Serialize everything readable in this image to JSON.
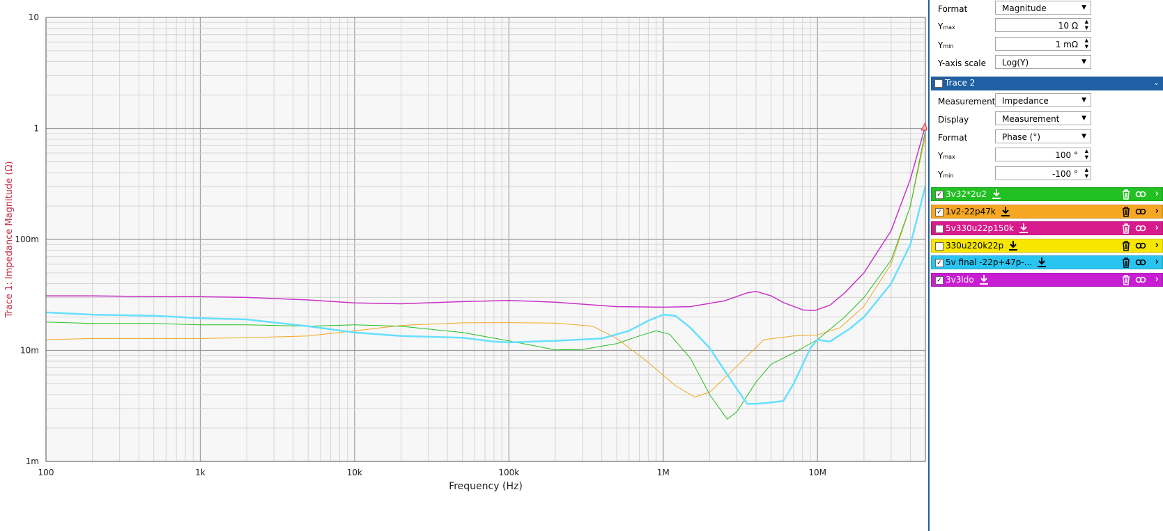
{
  "chart_data": {
    "type": "line",
    "xlabel": "Frequency (Hz)",
    "ylabel": "Trace 1: Impedance Magnitude (Ω)",
    "xscale": "log",
    "yscale": "log",
    "xlim": [
      100,
      50000000
    ],
    "ylim": [
      0.001,
      10
    ],
    "xticks": [
      {
        "value": 100,
        "label": "100"
      },
      {
        "value": 1000,
        "label": "1k"
      },
      {
        "value": 10000,
        "label": "10k"
      },
      {
        "value": 100000,
        "label": "100k"
      },
      {
        "value": 1000000,
        "label": "1M"
      },
      {
        "value": 10000000,
        "label": "10M"
      }
    ],
    "yticks": [
      {
        "value": 0.001,
        "label": "1m"
      },
      {
        "value": 0.01,
        "label": "10m"
      },
      {
        "value": 0.1,
        "label": "100m"
      },
      {
        "value": 1,
        "label": "1"
      },
      {
        "value": 10,
        "label": "10"
      }
    ],
    "grid": true,
    "series": [
      {
        "name": "3v3ldo",
        "color": "#c832c8",
        "width": 1.5,
        "x": [
          100,
          200,
          500,
          1000,
          2000,
          5000,
          10000,
          20000,
          50000,
          100000,
          200000,
          500000,
          1000000,
          1500000,
          2500000,
          3500000,
          4000000,
          5000000,
          6000000,
          8000000,
          9500000,
          12000000,
          15000000,
          20000000,
          30000000,
          40000000,
          50000000
        ],
        "y": [
          0.031,
          0.031,
          0.0305,
          0.0305,
          0.03,
          0.0285,
          0.0268,
          0.0263,
          0.0275,
          0.0282,
          0.0272,
          0.0248,
          0.0245,
          0.0248,
          0.028,
          0.033,
          0.034,
          0.031,
          0.027,
          0.0232,
          0.0228,
          0.0255,
          0.033,
          0.05,
          0.12,
          0.35,
          1.05
        ]
      },
      {
        "name": "1v2-22p47k",
        "color": "#f5a623",
        "width": 1,
        "x": [
          100,
          200,
          500,
          1000,
          2000,
          5000,
          10000,
          20000,
          50000,
          100000,
          200000,
          350000,
          500000,
          800000,
          1200000,
          1600000,
          2000000,
          3000000,
          4500000,
          7000000,
          10000000,
          14000000,
          20000000,
          30000000,
          40000000,
          50000000
        ],
        "y": [
          0.0125,
          0.0128,
          0.0128,
          0.0128,
          0.013,
          0.0135,
          0.015,
          0.0168,
          0.0177,
          0.0178,
          0.0176,
          0.0165,
          0.0128,
          0.0078,
          0.0048,
          0.0038,
          0.0042,
          0.0072,
          0.0125,
          0.0135,
          0.0138,
          0.016,
          0.025,
          0.06,
          0.2,
          0.85
        ]
      },
      {
        "name": "3v32*2u2",
        "color": "#22c022",
        "width": 1,
        "x": [
          100,
          200,
          500,
          1000,
          2000,
          5000,
          10000,
          20000,
          50000,
          100000,
          200000,
          300000,
          500000,
          700000,
          900000,
          1100000,
          1500000,
          2000000,
          2600000,
          3000000,
          4000000,
          5000000,
          7000000,
          10000000,
          15000000,
          20000000,
          30000000,
          40000000,
          50000000
        ],
        "y": [
          0.018,
          0.0175,
          0.0175,
          0.017,
          0.017,
          0.0165,
          0.017,
          0.0165,
          0.0145,
          0.0122,
          0.0101,
          0.0102,
          0.0115,
          0.0135,
          0.015,
          0.014,
          0.0085,
          0.004,
          0.0024,
          0.0028,
          0.0052,
          0.0075,
          0.0095,
          0.0125,
          0.02,
          0.03,
          0.065,
          0.2,
          0.95
        ]
      },
      {
        "name": "5v final -22p+47p-...",
        "color": "#66e0ff",
        "width": 2.5,
        "x": [
          100,
          200,
          500,
          1000,
          2000,
          5000,
          10000,
          20000,
          50000,
          80000,
          100000,
          200000,
          400000,
          600000,
          800000,
          1000000,
          1200000,
          1500000,
          2000000,
          3000000,
          3500000,
          4000000,
          5000000,
          6000000,
          7000000,
          9000000,
          10000000,
          12000000,
          16000000,
          20000000,
          30000000,
          40000000,
          50000000
        ],
        "y": [
          0.022,
          0.021,
          0.0205,
          0.0195,
          0.019,
          0.0165,
          0.0145,
          0.0135,
          0.013,
          0.012,
          0.0118,
          0.0122,
          0.0128,
          0.015,
          0.0185,
          0.021,
          0.0205,
          0.016,
          0.0105,
          0.0045,
          0.0033,
          0.0033,
          0.0034,
          0.0035,
          0.005,
          0.0105,
          0.0125,
          0.012,
          0.0155,
          0.02,
          0.04,
          0.09,
          0.3
        ]
      }
    ]
  },
  "panel": {
    "format_label": "Format",
    "format_value": "Magnitude",
    "ymax_label": "Y",
    "ymax_sub": "max",
    "ymax_value": "10 Ω",
    "ymin_label": "Y",
    "ymin_sub": "min",
    "ymin_value": "1 mΩ",
    "yscale_label": "Y-axis scale",
    "yscale_value": "Log(Y)",
    "trace2": {
      "title": "Trace 2",
      "measurement_label": "Measurement",
      "measurement_value": "Impedance",
      "display_label": "Display",
      "display_value": "Measurement",
      "format_label": "Format",
      "format_value": "Phase (°)",
      "ymax_label": "Y",
      "ymax_sub": "max",
      "ymax_value": "100 °",
      "ymin_label": "Y",
      "ymin_sub": "min",
      "ymin_value": "-100 °"
    },
    "measurements": [
      {
        "name": "3v32*2u2",
        "color": "#22c022",
        "text_color": "#ffffff",
        "checked": true
      },
      {
        "name": "1v2-22p47k",
        "color": "#f5a623",
        "text_color": "#000000",
        "checked": true
      },
      {
        "name": "5v330u22p150k",
        "color": "#d81b8c",
        "text_color": "#ffffff",
        "checked": false
      },
      {
        "name": "330u220k22p",
        "color": "#f7e600",
        "text_color": "#000000",
        "checked": false
      },
      {
        "name": "5v final -22p+47p-...",
        "color": "#29c4f0",
        "text_color": "#000000",
        "checked": true
      },
      {
        "name": "3v3ldo",
        "color": "#c81ed2",
        "text_color": "#ffffff",
        "checked": true
      }
    ]
  },
  "icons": {
    "check": "✓",
    "dropdown": "▼",
    "spin_up": "▲",
    "spin_down": "▼",
    "collapse": "⌄",
    "download": "download-icon",
    "trash": "trash-icon",
    "link": "link-icon",
    "expand": "chevron-right-icon"
  }
}
